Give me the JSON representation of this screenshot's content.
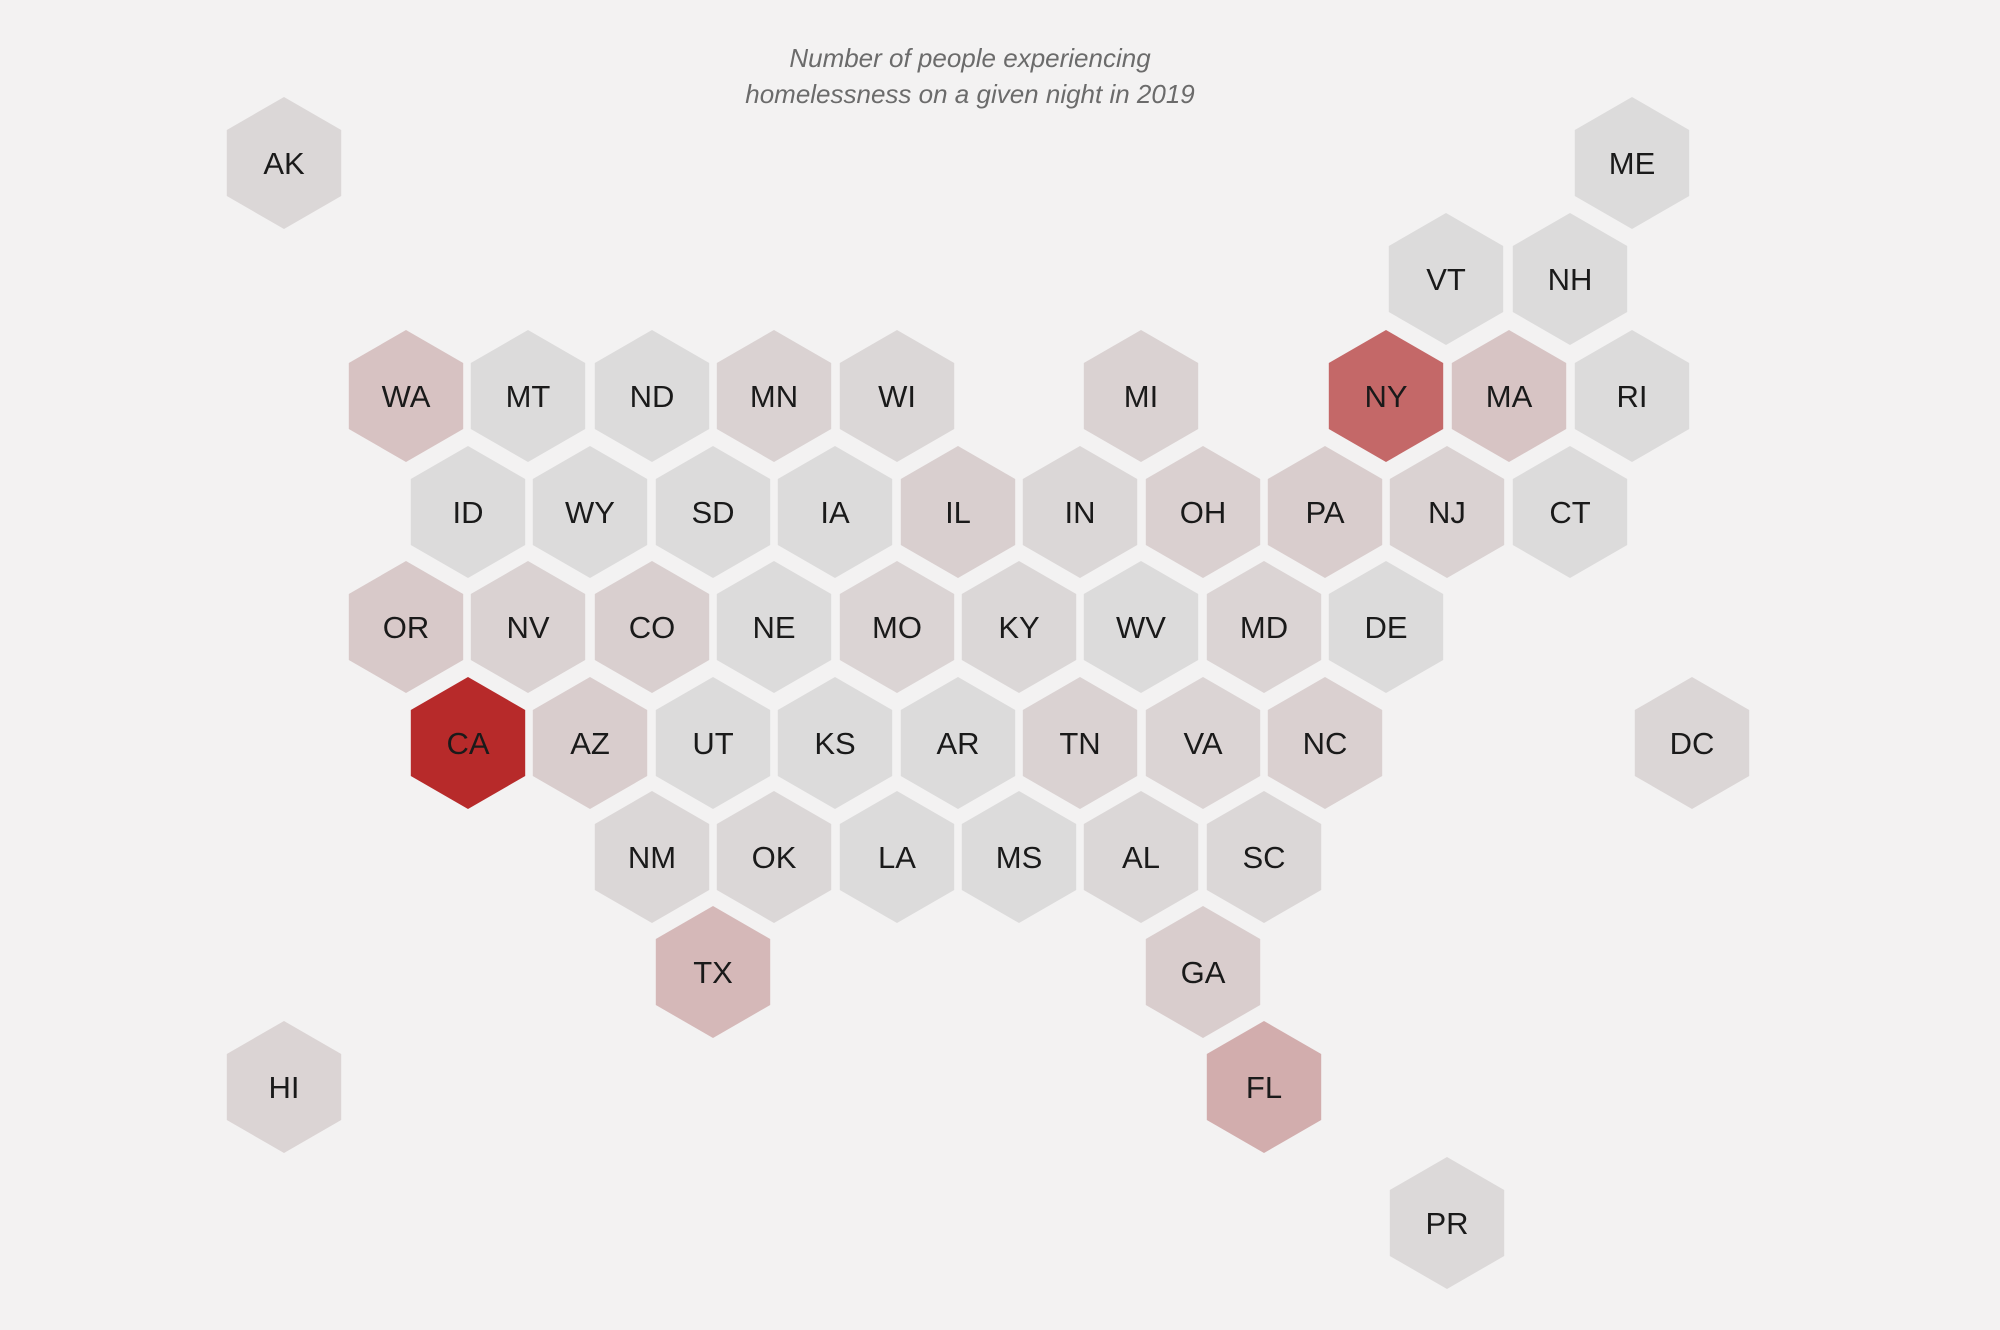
{
  "title": {
    "line1": "Number of people experiencing",
    "line2": "homelessness on a given night in 2019"
  },
  "colors": {
    "background": "#f3f2f2",
    "low": "#dcdbdb",
    "high": "#b72a2a",
    "label": "#1a1a1a",
    "title": "#6b6b6b"
  },
  "chart_data": {
    "type": "hex-tile-map",
    "metric": "homelessness_intensity_0_to_1",
    "states": [
      {
        "abbr": "AK",
        "value": 0.02
      },
      {
        "abbr": "ME",
        "value": 0.0
      },
      {
        "abbr": "VT",
        "value": 0.0
      },
      {
        "abbr": "NH",
        "value": 0.0
      },
      {
        "abbr": "WA",
        "value": 0.14
      },
      {
        "abbr": "MT",
        "value": 0.0
      },
      {
        "abbr": "ND",
        "value": 0.0
      },
      {
        "abbr": "MN",
        "value": 0.05
      },
      {
        "abbr": "WI",
        "value": 0.02
      },
      {
        "abbr": "MI",
        "value": 0.05
      },
      {
        "abbr": "NY",
        "value": 0.65
      },
      {
        "abbr": "MA",
        "value": 0.13
      },
      {
        "abbr": "RI",
        "value": 0.0
      },
      {
        "abbr": "ID",
        "value": 0.0
      },
      {
        "abbr": "WY",
        "value": 0.0
      },
      {
        "abbr": "SD",
        "value": 0.0
      },
      {
        "abbr": "IA",
        "value": 0.0
      },
      {
        "abbr": "IL",
        "value": 0.07
      },
      {
        "abbr": "IN",
        "value": 0.02
      },
      {
        "abbr": "OH",
        "value": 0.06
      },
      {
        "abbr": "PA",
        "value": 0.08
      },
      {
        "abbr": "NJ",
        "value": 0.05
      },
      {
        "abbr": "CT",
        "value": 0.0
      },
      {
        "abbr": "OR",
        "value": 0.1
      },
      {
        "abbr": "NV",
        "value": 0.05
      },
      {
        "abbr": "CO",
        "value": 0.07
      },
      {
        "abbr": "NE",
        "value": 0.0
      },
      {
        "abbr": "MO",
        "value": 0.04
      },
      {
        "abbr": "KY",
        "value": 0.02
      },
      {
        "abbr": "WV",
        "value": 0.0
      },
      {
        "abbr": "MD",
        "value": 0.04
      },
      {
        "abbr": "DE",
        "value": 0.0
      },
      {
        "abbr": "CA",
        "value": 1.0
      },
      {
        "abbr": "AZ",
        "value": 0.08
      },
      {
        "abbr": "UT",
        "value": 0.0
      },
      {
        "abbr": "KS",
        "value": 0.0
      },
      {
        "abbr": "AR",
        "value": 0.0
      },
      {
        "abbr": "TN",
        "value": 0.05
      },
      {
        "abbr": "VA",
        "value": 0.04
      },
      {
        "abbr": "NC",
        "value": 0.06
      },
      {
        "abbr": "DC",
        "value": 0.03
      },
      {
        "abbr": "NM",
        "value": 0.02
      },
      {
        "abbr": "OK",
        "value": 0.02
      },
      {
        "abbr": "LA",
        "value": 0.0
      },
      {
        "abbr": "MS",
        "value": 0.0
      },
      {
        "abbr": "AL",
        "value": 0.02
      },
      {
        "abbr": "SC",
        "value": 0.02
      },
      {
        "abbr": "TX",
        "value": 0.2
      },
      {
        "abbr": "GA",
        "value": 0.08
      },
      {
        "abbr": "HI",
        "value": 0.04
      },
      {
        "abbr": "FL",
        "value": 0.26
      },
      {
        "abbr": "PR",
        "value": 0.01
      }
    ]
  }
}
